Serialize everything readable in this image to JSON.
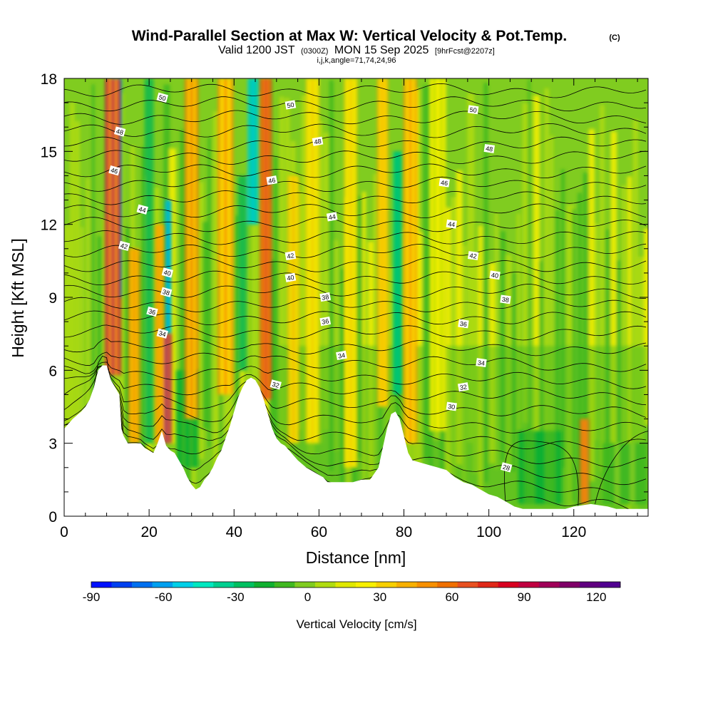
{
  "chart_data": {
    "type": "heatmap",
    "title": "Wind-Parallel Section at Max W: Vertical Velocity & Pot.Temp.",
    "copyright": "(C)",
    "subtitle_main": "Valid 1200 JST",
    "subtitle_utc": "(0300Z)",
    "subtitle_date": "MON 15 Sep 2025",
    "subtitle_fcst": "[9hrFcst@2207z]",
    "subtitle_ijk": "i,j,k,angle=71,74,24,96",
    "xlabel": "Distance [nm]",
    "ylabel": "Height [Kft MSL]",
    "xlim": [
      0,
      137.5
    ],
    "ylim": [
      0,
      18
    ],
    "xticks": [
      "0",
      "20",
      "40",
      "60",
      "80",
      "100",
      "120"
    ],
    "yticks": [
      "0",
      "3",
      "6",
      "9",
      "12",
      "15",
      "18"
    ],
    "colorbar": {
      "label": "Vertical Velocity [cm/s]",
      "ticks": [
        "-90",
        "-60",
        "-30",
        "0",
        "30",
        "60",
        "90",
        "120"
      ],
      "range": [
        -90,
        130
      ],
      "colors": [
        "#0010ff",
        "#0040f0",
        "#0070f0",
        "#00a0f0",
        "#00d0e8",
        "#00e8c0",
        "#00d090",
        "#00c060",
        "#10b030",
        "#40b820",
        "#80cc20",
        "#b0dc10",
        "#e0e800",
        "#f8f000",
        "#f8d000",
        "#f8b000",
        "#f89000",
        "#f07000",
        "#e85020",
        "#e02818",
        "#d80020",
        "#c00040",
        "#a00058",
        "#800068",
        "#600080",
        "#500090"
      ]
    },
    "theta_contours": [
      {
        "label": "50",
        "x": 23.1,
        "y": 17.2
      },
      {
        "label": "50",
        "x": 53.3,
        "y": 16.9
      },
      {
        "label": "50",
        "x": 96.3,
        "y": 16.7
      },
      {
        "label": "48",
        "x": 13.1,
        "y": 15.8
      },
      {
        "label": "48",
        "x": 59.7,
        "y": 15.4
      },
      {
        "label": "48",
        "x": 100.1,
        "y": 15.1
      },
      {
        "label": "46",
        "x": 11.8,
        "y": 14.2
      },
      {
        "label": "46",
        "x": 48.9,
        "y": 13.8
      },
      {
        "label": "46",
        "x": 89.5,
        "y": 13.7
      },
      {
        "label": "44",
        "x": 18.4,
        "y": 12.6
      },
      {
        "label": "44",
        "x": 63.1,
        "y": 12.3
      },
      {
        "label": "44",
        "x": 91.2,
        "y": 12.0
      },
      {
        "label": "42",
        "x": 14.1,
        "y": 11.1
      },
      {
        "label": "42",
        "x": 53.3,
        "y": 10.7
      },
      {
        "label": "42",
        "x": 96.3,
        "y": 10.7
      },
      {
        "label": "40",
        "x": 24.3,
        "y": 10.0
      },
      {
        "label": "40",
        "x": 53.3,
        "y": 9.8
      },
      {
        "label": "40",
        "x": 101.4,
        "y": 9.9
      },
      {
        "label": "38",
        "x": 24.0,
        "y": 9.2
      },
      {
        "label": "38",
        "x": 61.5,
        "y": 9.0
      },
      {
        "label": "38",
        "x": 103.9,
        "y": 8.9
      },
      {
        "label": "36",
        "x": 20.7,
        "y": 8.4
      },
      {
        "label": "36",
        "x": 61.5,
        "y": 8.0
      },
      {
        "label": "36",
        "x": 94.0,
        "y": 7.9
      },
      {
        "label": "34",
        "x": 23.1,
        "y": 7.5
      },
      {
        "label": "34",
        "x": 65.3,
        "y": 6.6
      },
      {
        "label": "34",
        "x": 98.2,
        "y": 6.3
      },
      {
        "label": "32",
        "x": 49.8,
        "y": 5.4
      },
      {
        "label": "32",
        "x": 94.0,
        "y": 5.3
      },
      {
        "label": "30",
        "x": 91.2,
        "y": 4.5
      },
      {
        "label": "28",
        "x": 104.1,
        "y": 2.0
      }
    ],
    "terrain": [
      [
        0,
        3.6
      ],
      [
        2,
        4.0
      ],
      [
        4,
        4.3
      ],
      [
        5,
        4.5
      ],
      [
        6,
        4.8
      ],
      [
        7,
        5.3
      ],
      [
        8,
        6.0
      ],
      [
        9,
        6.2
      ],
      [
        10,
        6.2
      ],
      [
        11,
        5.6
      ],
      [
        12,
        5.3
      ],
      [
        13,
        5.0
      ],
      [
        13.5,
        3.6
      ],
      [
        14,
        3.3
      ],
      [
        15,
        3.0
      ],
      [
        17,
        3.0
      ],
      [
        18,
        3.0
      ],
      [
        19,
        2.8
      ],
      [
        20,
        2.7
      ],
      [
        21,
        2.6
      ],
      [
        22,
        3.0
      ],
      [
        23,
        3.5
      ],
      [
        24,
        2.9
      ],
      [
        25,
        2.7
      ],
      [
        26,
        2.6
      ],
      [
        27,
        2.3
      ],
      [
        28,
        2.0
      ],
      [
        29,
        1.6
      ],
      [
        30,
        1.3
      ],
      [
        31,
        1.1
      ],
      [
        32,
        1.2
      ],
      [
        33,
        1.5
      ],
      [
        34,
        1.7
      ],
      [
        35,
        2.0
      ],
      [
        36,
        2.4
      ],
      [
        37,
        2.7
      ],
      [
        38,
        3.2
      ],
      [
        39,
        3.7
      ],
      [
        40,
        4.3
      ],
      [
        41,
        4.9
      ],
      [
        42,
        5.3
      ],
      [
        43,
        5.6
      ],
      [
        44,
        5.7
      ],
      [
        45,
        5.6
      ],
      [
        46,
        5.3
      ],
      [
        47,
        4.8
      ],
      [
        48,
        4.2
      ],
      [
        49,
        3.6
      ],
      [
        50,
        3.2
      ],
      [
        51,
        3.0
      ],
      [
        52,
        2.9
      ],
      [
        53,
        2.7
      ],
      [
        54,
        2.5
      ],
      [
        55,
        2.3
      ],
      [
        57,
        2.0
      ],
      [
        59,
        1.8
      ],
      [
        61,
        1.6
      ],
      [
        62,
        1.4
      ],
      [
        65,
        1.4
      ],
      [
        68,
        1.4
      ],
      [
        70,
        1.5
      ],
      [
        72,
        1.5
      ],
      [
        74,
        2.0
      ],
      [
        75,
        2.8
      ],
      [
        76,
        3.6
      ],
      [
        77,
        4.2
      ],
      [
        78,
        4.3
      ],
      [
        79,
        4.0
      ],
      [
        80,
        3.3
      ],
      [
        81,
        2.6
      ],
      [
        82,
        2.3
      ],
      [
        84,
        2.2
      ],
      [
        86,
        2.1
      ],
      [
        88,
        2.0
      ],
      [
        90,
        1.9
      ],
      [
        92,
        1.6
      ],
      [
        94,
        1.4
      ],
      [
        96,
        1.3
      ],
      [
        98,
        1.1
      ],
      [
        100,
        0.9
      ],
      [
        102,
        0.8
      ],
      [
        104,
        0.6
      ],
      [
        106,
        0.4
      ],
      [
        108,
        0.3
      ],
      [
        118,
        0.3
      ],
      [
        120,
        0.4
      ],
      [
        124,
        0.5
      ],
      [
        128,
        0.4
      ],
      [
        130,
        0.3
      ],
      [
        137.5,
        0.3
      ]
    ],
    "updrafts": [
      {
        "x": 11.5,
        "ybot": 5.8,
        "ytop": 18,
        "w": 1.4,
        "v": 95
      },
      {
        "x": 16.5,
        "ybot": 3.0,
        "ytop": 11,
        "w": 1.0,
        "v": 55
      },
      {
        "x": 24.0,
        "ybot": 3.0,
        "ytop": 7.5,
        "w": 1.0,
        "v": 110
      },
      {
        "x": 22.5,
        "ybot": 3.0,
        "ytop": 12,
        "w": 0.8,
        "v": 60
      },
      {
        "x": 30.0,
        "ybot": 4.0,
        "ytop": 18,
        "w": 1.2,
        "v": 60
      },
      {
        "x": 38.0,
        "ybot": 5.0,
        "ytop": 18,
        "w": 1.4,
        "v": 50
      },
      {
        "x": 47.5,
        "ybot": 4.8,
        "ytop": 18,
        "w": 1.0,
        "v": 85
      },
      {
        "x": 54.0,
        "ybot": 3.0,
        "ytop": 14,
        "w": 1.0,
        "v": 40
      },
      {
        "x": 58.5,
        "ybot": 3.0,
        "ytop": 18,
        "w": 1.2,
        "v": 35
      },
      {
        "x": 67.5,
        "ybot": 2.0,
        "ytop": 18,
        "w": 1.2,
        "v": 35
      },
      {
        "x": 75.0,
        "ybot": 4.5,
        "ytop": 18,
        "w": 1.0,
        "v": 45
      },
      {
        "x": 81.5,
        "ybot": 3.0,
        "ytop": 18,
        "w": 1.2,
        "v": 50
      },
      {
        "x": 88.0,
        "ybot": 3.5,
        "ytop": 18,
        "w": 1.5,
        "v": 25
      },
      {
        "x": 122.5,
        "ybot": 0.5,
        "ytop": 4.0,
        "w": 0.8,
        "v": 75
      }
    ],
    "downdrafts": [
      {
        "x": 12.5,
        "ybot": 9.0,
        "ytop": 18,
        "w": 0.8,
        "v": -50
      },
      {
        "x": 24.5,
        "ybot": 7.5,
        "ytop": 13,
        "w": 0.6,
        "v": -60
      },
      {
        "x": 44.5,
        "ybot": 12.0,
        "ytop": 18,
        "w": 1.0,
        "v": -50
      },
      {
        "x": 20.0,
        "ybot": 3.0,
        "ytop": 18,
        "w": 0.8,
        "v": -25
      },
      {
        "x": 29.0,
        "ybot": 2.0,
        "ytop": 6.0,
        "w": 2.0,
        "v": -20
      },
      {
        "x": 42.0,
        "ybot": 6.0,
        "ytop": 14,
        "w": 0.8,
        "v": -25
      },
      {
        "x": 78.5,
        "ybot": 5.0,
        "ytop": 15,
        "w": 0.8,
        "v": -35
      },
      {
        "x": 112.0,
        "ybot": 0.5,
        "ytop": 3.5,
        "w": 4.0,
        "v": -15
      },
      {
        "x": 132.0,
        "ybot": 0.5,
        "ytop": 3.0,
        "w": 4.0,
        "v": -10
      }
    ]
  }
}
